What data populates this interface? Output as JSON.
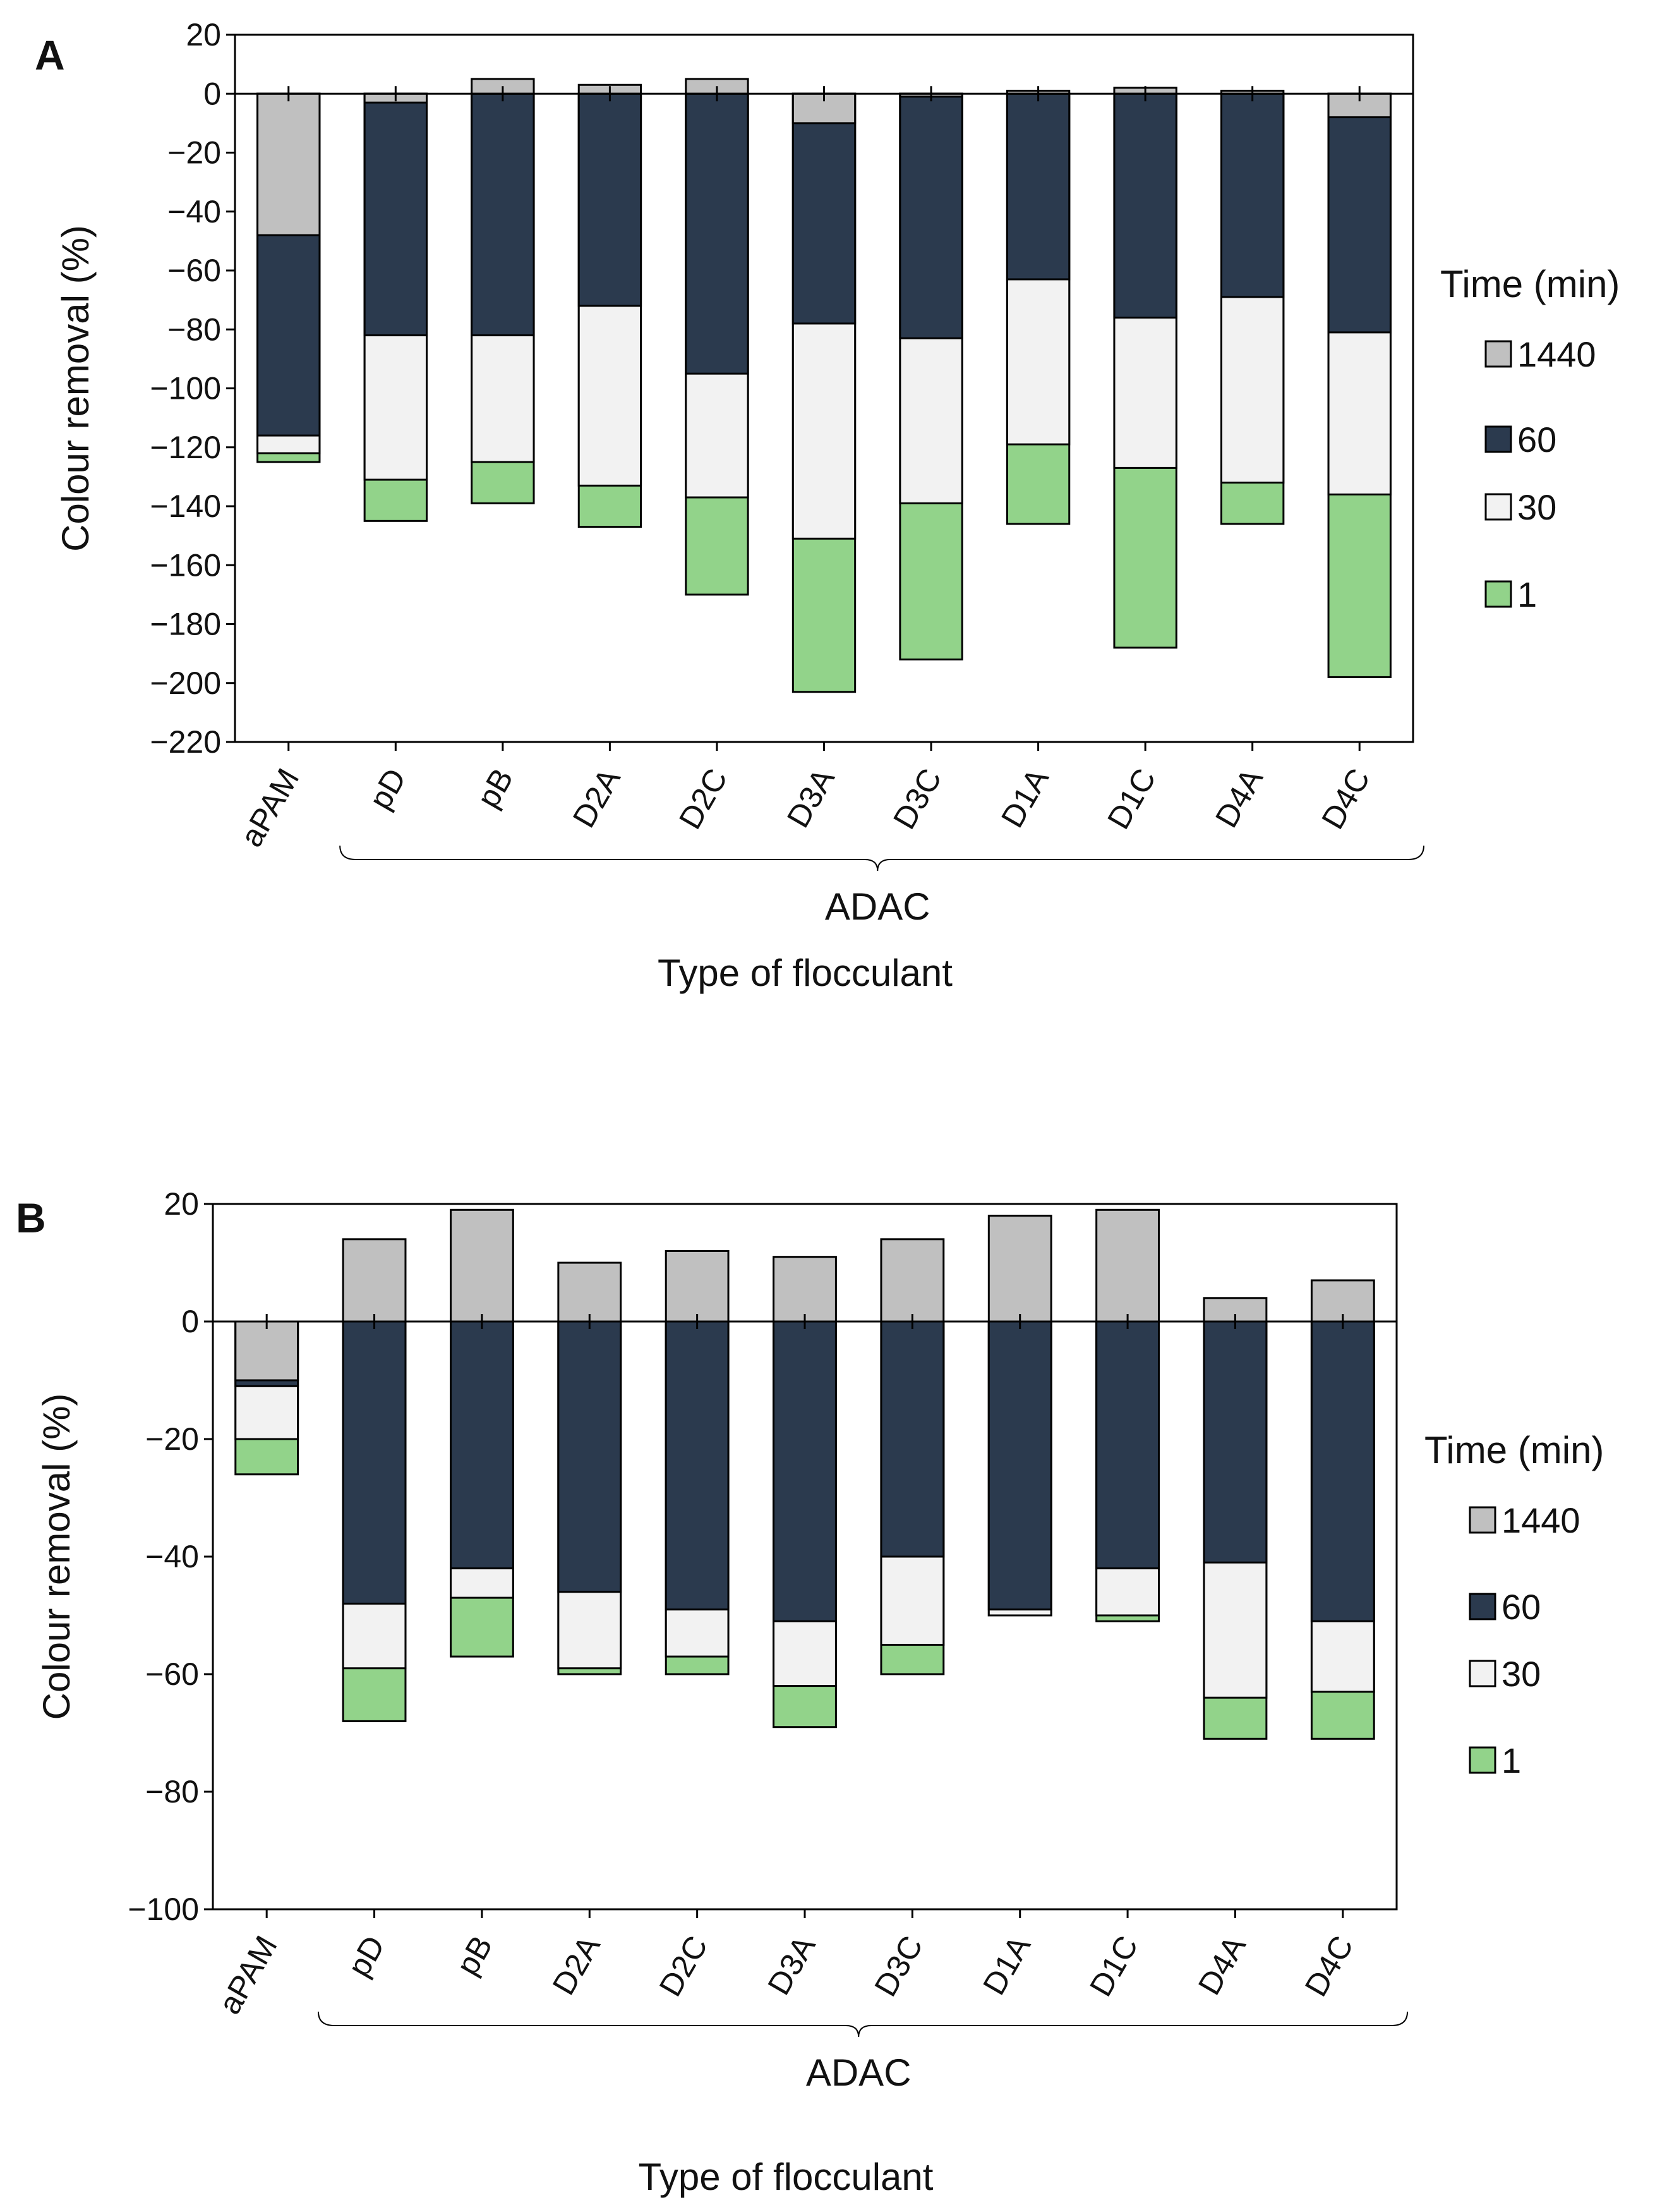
{
  "chart_data": [
    {
      "type": "bar",
      "panel_label": "A",
      "ylabel": "Colour removal (%)",
      "xlabel": "Type of flocculant",
      "group_label": "ADAC",
      "legend_title": "Time (min)",
      "categories": [
        "aPAM",
        "pD",
        "pB",
        "D2A",
        "D2C",
        "D3A",
        "D3C",
        "D1A",
        "D1C",
        "D4A",
        "D4C"
      ],
      "series": [
        {
          "name": "1440",
          "color": "#c0c0c0",
          "values": [
            -48,
            -3,
            5,
            3,
            5,
            -10,
            -1,
            1,
            2,
            1,
            -8
          ]
        },
        {
          "name": "60",
          "color": "#2b3a4e",
          "values": [
            -116,
            -82,
            -82,
            -72,
            -95,
            -78,
            -83,
            -63,
            -76,
            -69,
            -81
          ]
        },
        {
          "name": "30",
          "color": "#f2f2f2",
          "values": [
            -122,
            -131,
            -125,
            -133,
            -137,
            -151,
            -139,
            -119,
            -127,
            -132,
            -136
          ]
        },
        {
          "name": "1",
          "color": "#92d38a",
          "values": [
            -125,
            -145,
            -139,
            -147,
            -170,
            -203,
            -192,
            -146,
            -188,
            -146,
            -198
          ]
        }
      ],
      "ylim": [
        -220,
        20
      ],
      "yticks": [
        20,
        0,
        {
          "value": -20,
          "label": "−20"
        },
        {
          "value": -40,
          "label": "−40"
        },
        {
          "value": -60,
          "label": "−60"
        },
        {
          "value": -80,
          "label": "−80"
        },
        {
          "value": -100,
          "label": "−100"
        },
        {
          "value": -120,
          "label": "−120"
        },
        {
          "value": -140,
          "label": "−140"
        },
        {
          "value": -160,
          "label": "−160"
        },
        {
          "value": -180,
          "label": "−180"
        },
        {
          "value": -200,
          "label": "−200"
        },
        {
          "value": -220,
          "label": "−220"
        }
      ],
      "grid": false
    },
    {
      "type": "bar",
      "panel_label": "B",
      "ylabel": "Colour removal (%)",
      "xlabel": "Type of flocculant",
      "group_label": "ADAC",
      "legend_title": "Time (min)",
      "categories": [
        "aPAM",
        "pD",
        "pB",
        "D2A",
        "D2C",
        "D3A",
        "D3C",
        "D1A",
        "D1C",
        "D4A",
        "D4C"
      ],
      "series": [
        {
          "name": "1440",
          "color": "#c0c0c0",
          "values": [
            -10,
            14,
            19,
            10,
            12,
            11,
            14,
            18,
            19,
            4,
            7
          ]
        },
        {
          "name": "60",
          "color": "#2b3a4e",
          "values": [
            -11,
            -48,
            -42,
            -46,
            -49,
            -51,
            -40,
            -49,
            -42,
            -41,
            -51
          ]
        },
        {
          "name": "30",
          "color": "#f2f2f2",
          "values": [
            -20,
            -59,
            -47,
            -59,
            -57,
            -62,
            -55,
            -50,
            -50,
            -64,
            -63
          ]
        },
        {
          "name": "1",
          "color": "#92d38a",
          "values": [
            -26,
            -68,
            -57,
            -60,
            -60,
            -69,
            -60,
            -50,
            -51,
            -71,
            -71
          ]
        }
      ],
      "ylim": [
        -100,
        20
      ],
      "yticks": [
        20,
        0,
        {
          "value": -20,
          "label": "−20"
        },
        {
          "value": -40,
          "label": "−40"
        },
        {
          "value": -60,
          "label": "−60"
        },
        {
          "value": -80,
          "label": "−80"
        },
        {
          "value": -100,
          "label": "−100"
        }
      ],
      "grid": false
    }
  ]
}
